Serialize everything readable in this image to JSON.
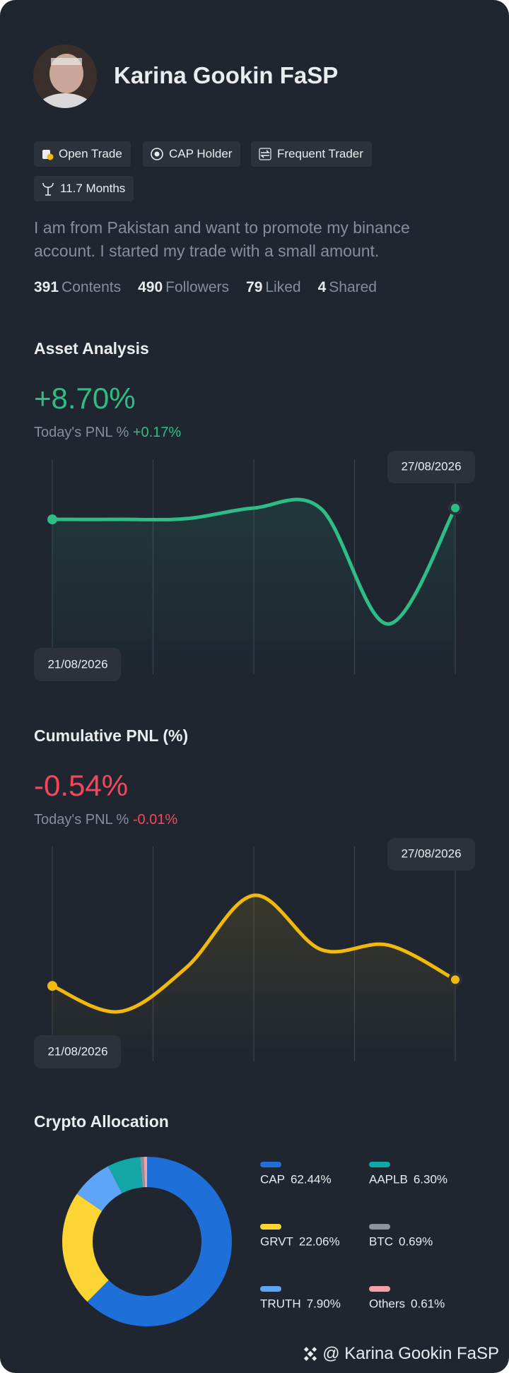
{
  "profile": {
    "name": "Karina Gookin FaSP",
    "badges": [
      "Open Trade",
      "CAP Holder",
      "Frequent Trader",
      "11.7 Months"
    ],
    "bio": "I am from Pakistan and want to promote my binance account. I started my trade with a small amount.",
    "stats": [
      {
        "value": 391,
        "label": "Contents"
      },
      {
        "value": 490,
        "label": "Followers"
      },
      {
        "value": 79,
        "label": "Liked"
      },
      {
        "value": 4,
        "label": "Shared"
      }
    ]
  },
  "charts": [
    {
      "type": "line",
      "title": "Asset Analysis",
      "headline": "+8.70%",
      "today_label": "Today's PNL %",
      "today_value": "+0.17%",
      "color": "#2ebd85",
      "categories": [
        "21/08/2026",
        null,
        null,
        null,
        null,
        null,
        "27/08/2026"
      ],
      "values": [
        7.84,
        7.84,
        7.9,
        8.7,
        8.66,
        -0.1,
        8.7
      ],
      "ylim": [
        -3.9,
        12.4
      ]
    },
    {
      "type": "line",
      "title": "Cumulative PNL (%)",
      "headline": "-0.54%",
      "today_label": "Today's PNL %",
      "today_value": "-0.01%",
      "color": "#f0b90b",
      "categories": [
        "21/08/2026",
        null,
        null,
        null,
        null,
        null,
        "27/08/2026"
      ],
      "values": [
        -0.61,
        -0.9,
        -0.4,
        0.41,
        -0.2,
        -0.15,
        -0.54
      ],
      "ylim": [
        -1.46,
        0.96
      ]
    },
    {
      "type": "pie",
      "title": "Crypto Allocation",
      "categories": [
        "CAP",
        "GRVT",
        "TRUTH",
        "AAPLB",
        "BTC",
        "Others"
      ],
      "values": [
        62.44,
        22.06,
        7.9,
        6.3,
        0.69,
        0.61
      ],
      "value_labels": [
        "62.44%",
        "22.06%",
        "7.90%",
        "6.30%",
        "0.69%",
        "0.61%"
      ],
      "colors": [
        "#1f6fd8",
        "#fcd535",
        "#5ea4f7",
        "#12a6a6",
        "#8d939b",
        "#f5a0a8"
      ]
    }
  ],
  "footer": "@ Karina Gookin FaSP"
}
